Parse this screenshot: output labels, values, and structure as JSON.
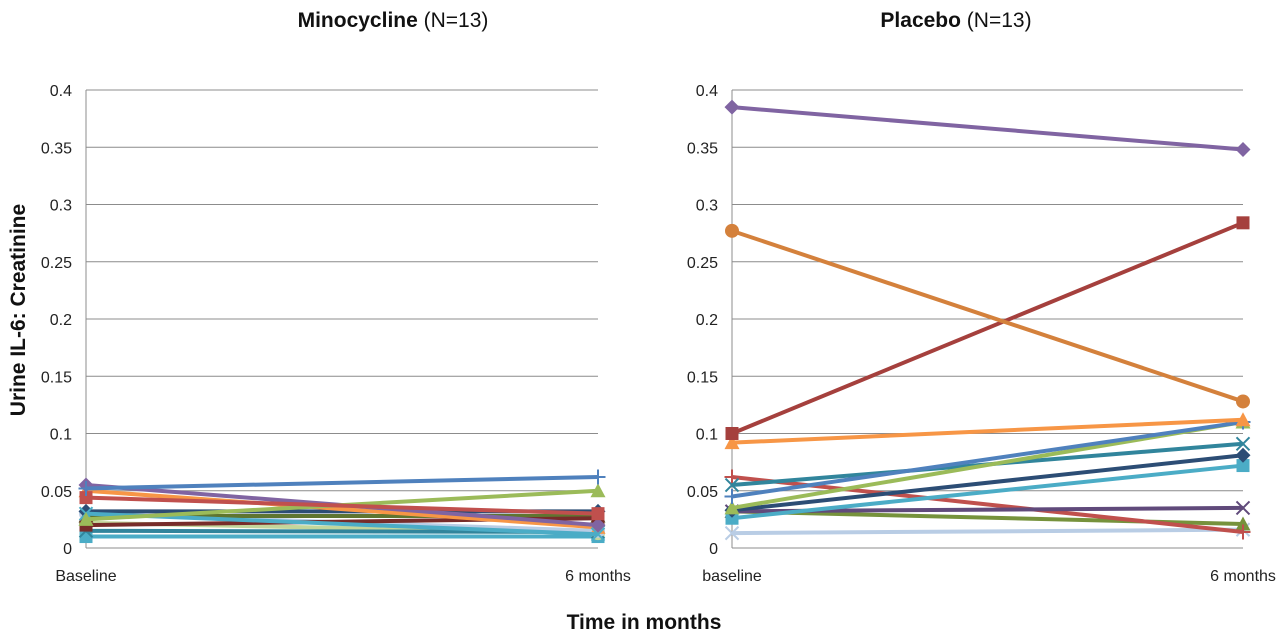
{
  "ylabel": "Urine IL-6: Creatinine",
  "xlabel": "Time in months",
  "chart_data": [
    {
      "type": "line",
      "title_bold": "Minocycline",
      "title_suffix": " (N=13)",
      "categories": [
        "Baseline",
        "6 months"
      ],
      "ylim": [
        0,
        0.4
      ],
      "yticks": [
        "0",
        "0.05",
        "0.1",
        "0.15",
        "0.2",
        "0.25",
        "0.3",
        "0.35",
        "0.4"
      ],
      "grid": true,
      "series": [
        {
          "color": "#4f81bd",
          "marker": "plus",
          "values": [
            0.052,
            0.062
          ]
        },
        {
          "color": "#c0504d",
          "marker": "square",
          "values": [
            0.044,
            0.03
          ]
        },
        {
          "color": "#9bbb59",
          "marker": "triangle",
          "values": [
            0.025,
            0.05
          ]
        },
        {
          "color": "#8064a2",
          "marker": "diamond",
          "values": [
            0.055,
            0.02
          ]
        },
        {
          "color": "#4bacc6",
          "marker": "x",
          "values": [
            0.03,
            0.012
          ]
        },
        {
          "color": "#f79646",
          "marker": "triangle",
          "values": [
            0.05,
            0.018
          ]
        },
        {
          "color": "#2c4d75",
          "marker": "diamond",
          "values": [
            0.032,
            0.032
          ]
        },
        {
          "color": "#772c2a",
          "marker": "square",
          "values": [
            0.02,
            0.026
          ]
        },
        {
          "color": "#5f7530",
          "marker": "triangle",
          "values": [
            0.028,
            0.028
          ]
        },
        {
          "color": "#b9cde5",
          "marker": "circle",
          "values": [
            0.03,
            0.015
          ]
        },
        {
          "color": "#31859c",
          "marker": "x",
          "values": [
            0.015,
            0.014
          ]
        },
        {
          "color": "#c3d69b",
          "marker": "circle",
          "values": [
            0.022,
            0.013
          ]
        },
        {
          "color": "#4bacc6",
          "marker": "square",
          "values": [
            0.01,
            0.01
          ]
        }
      ]
    },
    {
      "type": "line",
      "title_bold": "Placebo",
      "title_suffix": " (N=13)",
      "categories": [
        "baseline",
        "6 months"
      ],
      "ylim": [
        0,
        0.4
      ],
      "yticks": [
        "0",
        "0.05",
        "0.1",
        "0.15",
        "0.2",
        "0.25",
        "0.3",
        "0.35",
        "0.4"
      ],
      "grid": true,
      "series": [
        {
          "color": "#8064a2",
          "marker": "diamond",
          "values": [
            0.385,
            0.348
          ]
        },
        {
          "color": "#d4813c",
          "marker": "circle",
          "values": [
            0.277,
            0.128
          ]
        },
        {
          "color": "#a5403d",
          "marker": "square",
          "values": [
            0.1,
            0.284
          ]
        },
        {
          "color": "#f79646",
          "marker": "triangle",
          "values": [
            0.092,
            0.112
          ]
        },
        {
          "color": "#4f81bd",
          "marker": "plus",
          "values": [
            0.045,
            0.11
          ]
        },
        {
          "color": "#9bbb59",
          "marker": "triangle",
          "values": [
            0.035,
            0.11
          ]
        },
        {
          "color": "#31859c",
          "marker": "x",
          "values": [
            0.055,
            0.091
          ]
        },
        {
          "color": "#2c4d75",
          "marker": "diamond",
          "values": [
            0.033,
            0.081
          ]
        },
        {
          "color": "#4bacc6",
          "marker": "square",
          "values": [
            0.026,
            0.072
          ]
        },
        {
          "color": "#604a7b",
          "marker": "x",
          "values": [
            0.032,
            0.035
          ]
        },
        {
          "color": "#c0504d",
          "marker": "plus",
          "values": [
            0.062,
            0.014
          ]
        },
        {
          "color": "#76923c",
          "marker": "triangle",
          "values": [
            0.032,
            0.021
          ]
        },
        {
          "color": "#b9cde5",
          "marker": "x",
          "values": [
            0.013,
            0.016
          ]
        }
      ]
    }
  ]
}
